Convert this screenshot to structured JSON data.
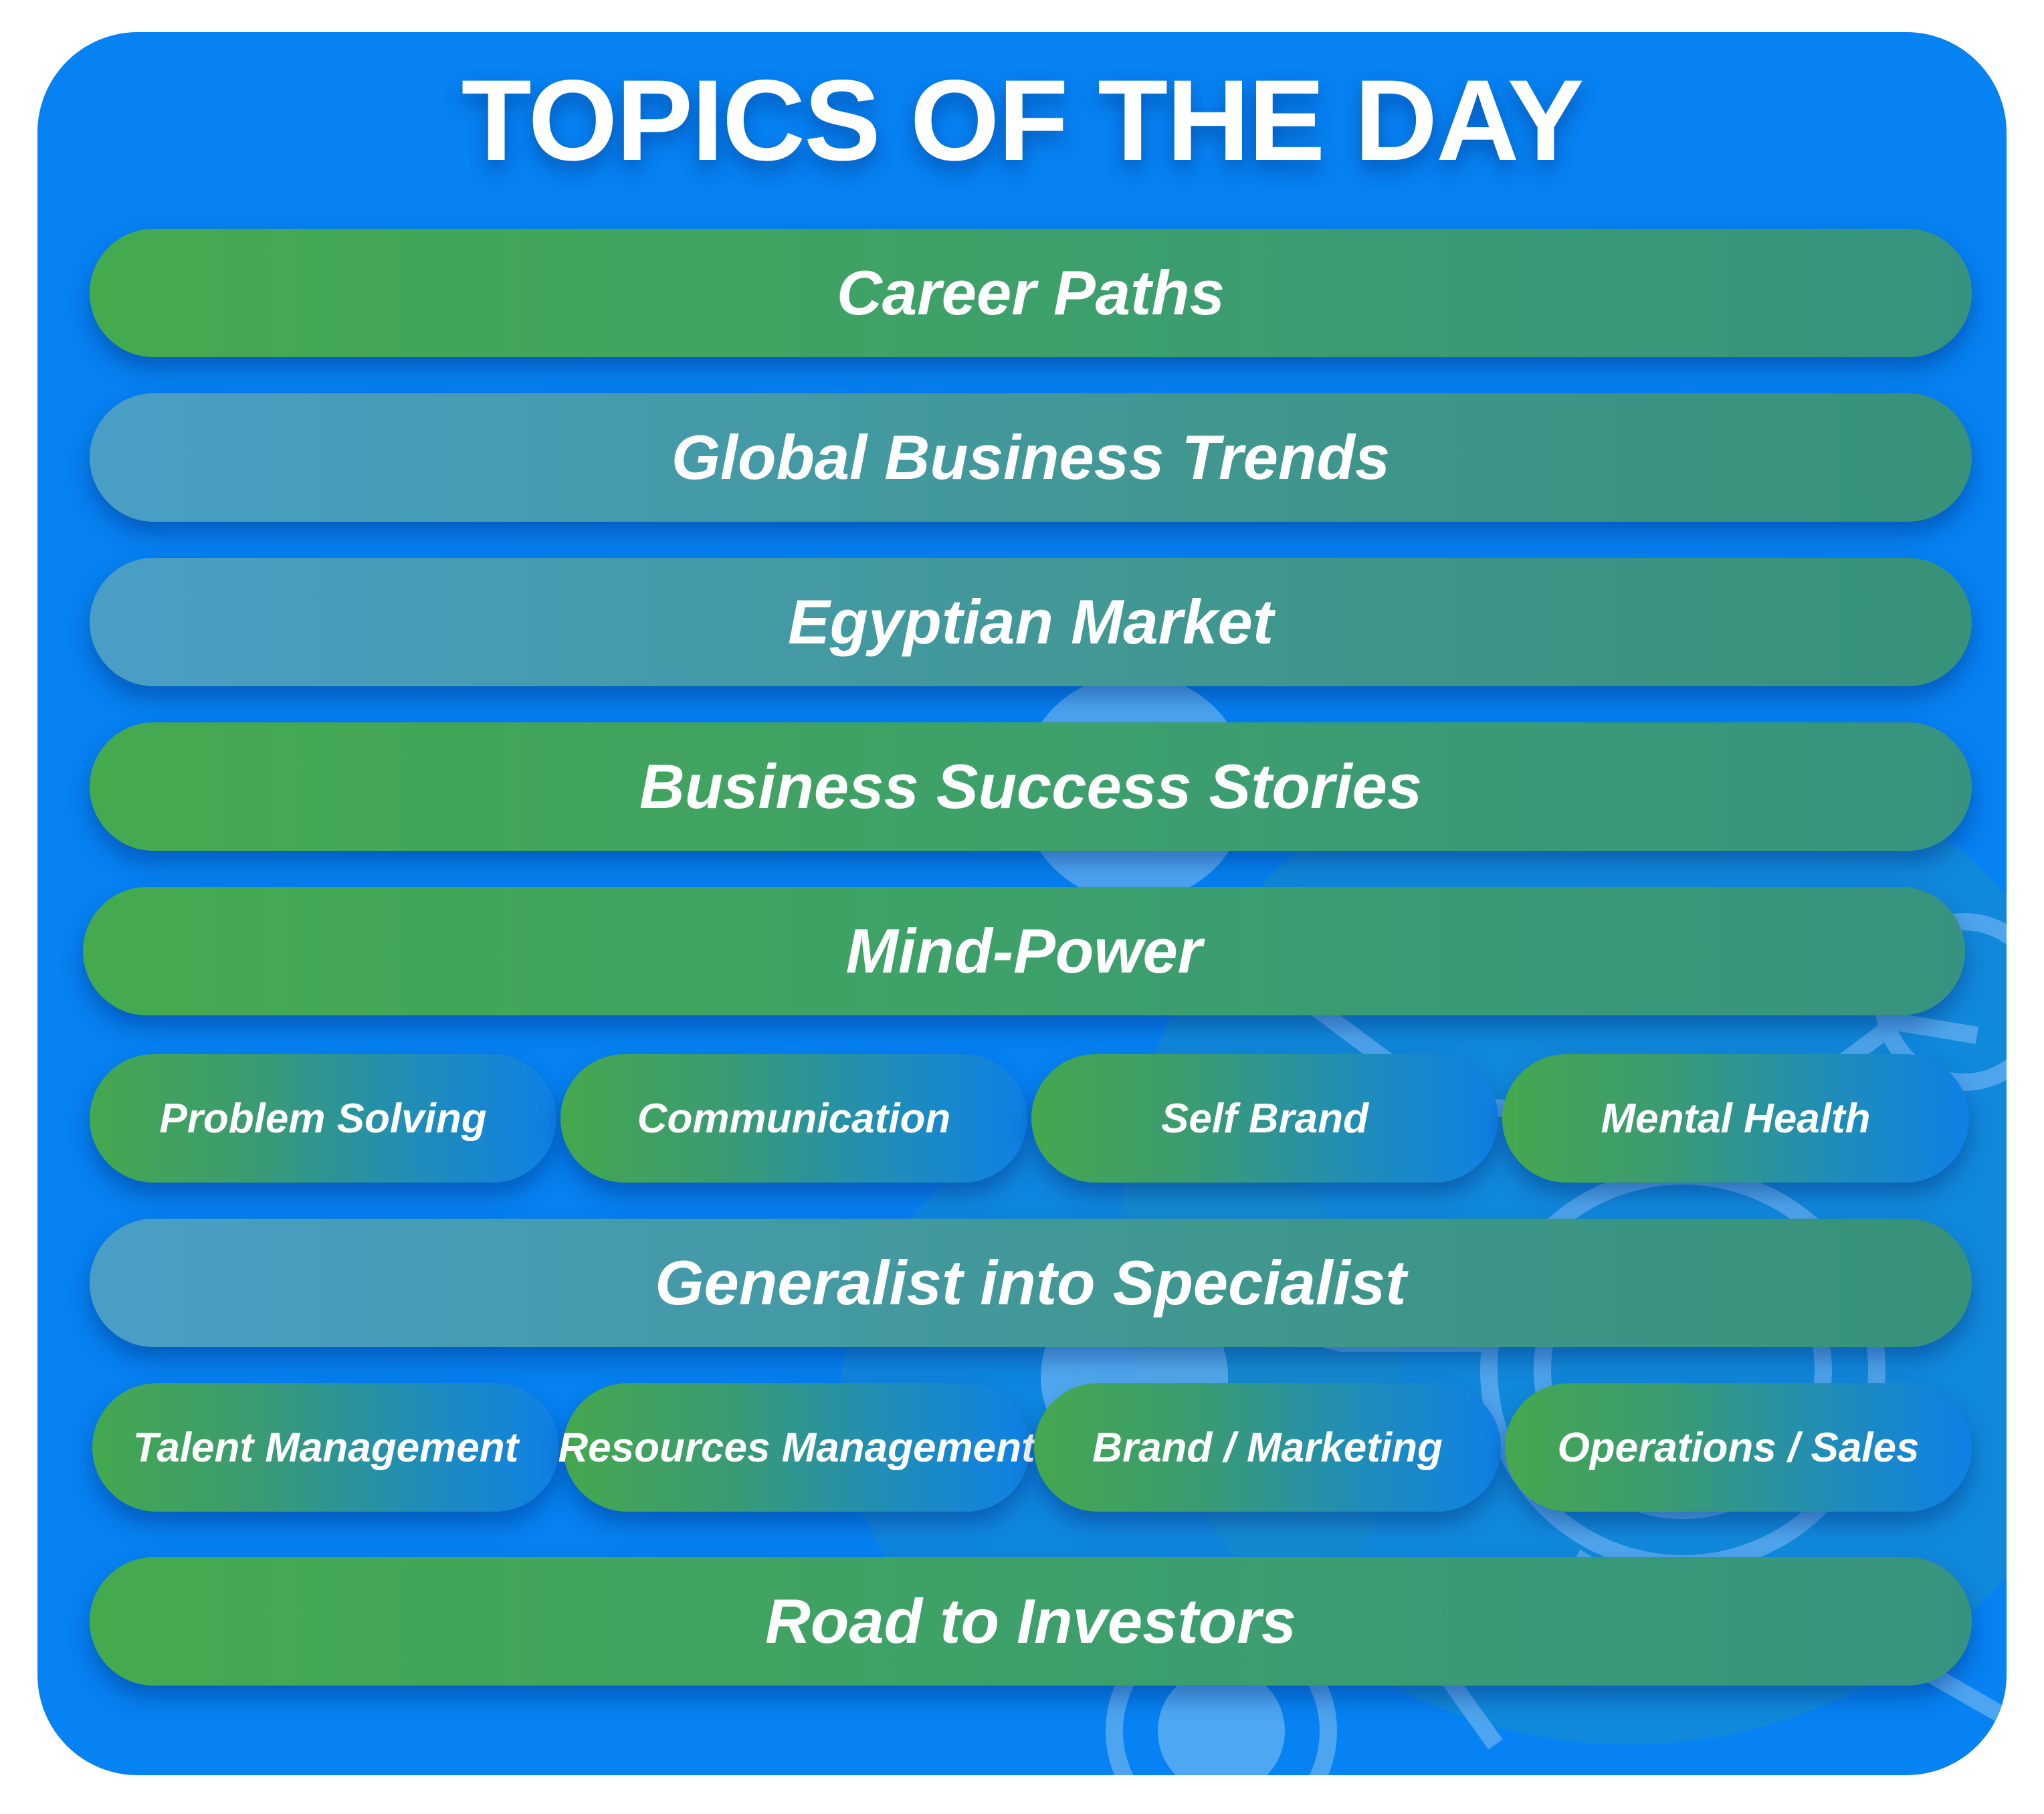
{
  "page": {
    "title": "TOPICS OF THE DAY",
    "colors": {
      "card_background": "#0682f2",
      "pill_green": "#45aa4e",
      "pill_teal": "#4a9ec6",
      "pill_blue_end": "#0f80e6",
      "text": "#ffffff"
    }
  },
  "topics": {
    "career_paths": "Career Paths",
    "global_business_trends": "Global Business Trends",
    "egyptian_market": "Egyptian Market",
    "business_success_stories": "Business Success Stories",
    "mind_power": "Mind-Power",
    "mind_power_subtopics": [
      "Problem Solving",
      "Communication",
      "Self Brand",
      "Mental Health"
    ],
    "generalist_into_specialist": "Generalist into Specialist",
    "specialist_subtopics": [
      "Talent Management",
      "Resources Management",
      "Brand / Marketing",
      "Operations / Sales"
    ],
    "road_to_investors": "Road to Investors"
  },
  "decor": {
    "icon": "gear-network-icon"
  }
}
